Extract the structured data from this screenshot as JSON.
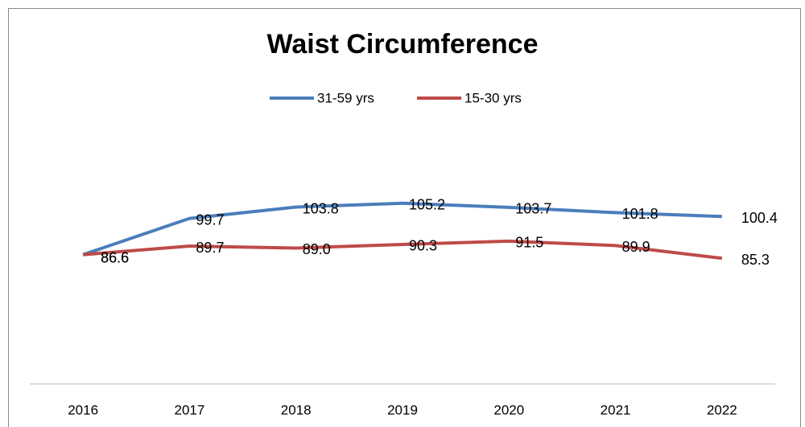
{
  "chart_data": {
    "type": "line",
    "title": "Waist Circumference",
    "categories": [
      "2016",
      "2017",
      "2018",
      "2019",
      "2020",
      "2021",
      "2022"
    ],
    "series": [
      {
        "name": "31-59 yrs",
        "color": "#4a7ebb",
        "values": [
          86.6,
          99.7,
          103.8,
          105.2,
          103.7,
          101.8,
          100.4
        ]
      },
      {
        "name": "15-30 yrs",
        "color": "#be4b48",
        "values": [
          86.6,
          89.7,
          89.0,
          90.3,
          91.5,
          89.9,
          85.3
        ],
        "value_labels": [
          "86.6",
          "89.7",
          "89.0",
          "90.3",
          "91.5",
          "89.9",
          "85.3"
        ]
      }
    ],
    "ylim": [
      40,
      140
    ],
    "legend": "top"
  }
}
